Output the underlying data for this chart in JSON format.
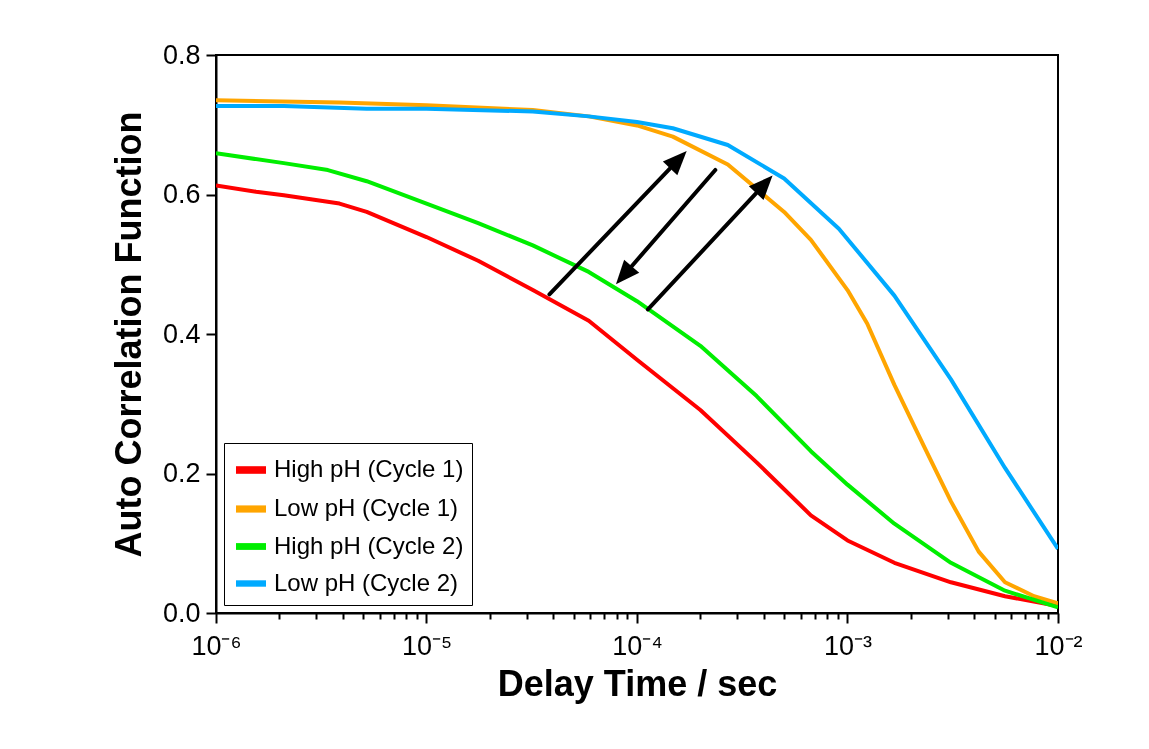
{
  "chart_data": {
    "type": "line",
    "xlabel": "Delay Time / sec",
    "ylabel": "Auto Correlation Function",
    "log": "x",
    "xlim": [
      1e-06,
      0.01
    ],
    "ylim": [
      0,
      0.8
    ],
    "xticks": [
      {
        "value": 1e-06,
        "label": "10⁻⁶"
      },
      {
        "value": 2e-06,
        "label": null
      },
      {
        "value": 3e-06,
        "label": null
      },
      {
        "value": 4e-06,
        "label": null
      },
      {
        "value": 5e-06,
        "label": null
      },
      {
        "value": 6e-06,
        "label": null
      },
      {
        "value": 7e-06,
        "label": null
      },
      {
        "value": 8e-06,
        "label": null
      },
      {
        "value": 9e-06,
        "label": null
      },
      {
        "value": 1e-05,
        "label": "10⁻⁵"
      },
      {
        "value": 2e-05,
        "label": null
      },
      {
        "value": 3e-05,
        "label": null
      },
      {
        "value": 4e-05,
        "label": null
      },
      {
        "value": 5e-05,
        "label": null
      },
      {
        "value": 6e-05,
        "label": null
      },
      {
        "value": 7e-05,
        "label": null
      },
      {
        "value": 8e-05,
        "label": null
      },
      {
        "value": 9e-05,
        "label": null
      },
      {
        "value": 0.0001,
        "label": "10⁻⁴"
      },
      {
        "value": 0.0002,
        "label": null
      },
      {
        "value": 0.0003,
        "label": null
      },
      {
        "value": 0.0004,
        "label": null
      },
      {
        "value": 0.0005,
        "label": null
      },
      {
        "value": 0.0006,
        "label": null
      },
      {
        "value": 0.0007,
        "label": null
      },
      {
        "value": 0.0008,
        "label": null
      },
      {
        "value": 0.0009,
        "label": null
      },
      {
        "value": 0.001,
        "label": "10⁻³"
      },
      {
        "value": 0.002,
        "label": null
      },
      {
        "value": 0.003,
        "label": null
      },
      {
        "value": 0.004,
        "label": null
      },
      {
        "value": 0.005,
        "label": null
      },
      {
        "value": 0.006,
        "label": null
      },
      {
        "value": 0.007,
        "label": null
      },
      {
        "value": 0.008,
        "label": null
      },
      {
        "value": 0.009,
        "label": null
      },
      {
        "value": 0.01,
        "label": "10⁻²"
      }
    ],
    "yticks": [
      {
        "value": 0,
        "label": "0.0"
      },
      0.2,
      0.4,
      0.6,
      0.8
    ],
    "grid": false,
    "legend": "bottom left",
    "line_style": "solid",
    "marker": "none",
    "series": [
      {
        "name": "High pH (Cycle 1)",
        "color": "#ff0000",
        "x": [
          1e-06,
          1.55e-06,
          2.1e-06,
          3.86e-06,
          5.2e-06,
          1e-05,
          1.76e-05,
          3.2e-05,
          5.9e-05,
          0.0001,
          0.0002,
          0.00037,
          0.00067,
          0.001,
          0.00167,
          0.0031,
          0.0056,
          0.01
        ],
        "values": [
          0.613,
          0.604,
          0.599,
          0.587,
          0.575,
          0.539,
          0.505,
          0.463,
          0.419,
          0.363,
          0.291,
          0.216,
          0.14,
          0.104,
          0.072,
          0.044,
          0.024,
          0.01
        ]
      },
      {
        "name": "Low pH (Cycle 1)",
        "color": "#ffa500",
        "x": [
          1e-06,
          3.86e-06,
          1e-05,
          3.2e-05,
          5.9e-05,
          0.0001,
          0.000148,
          0.00027,
          0.0005,
          0.00067,
          0.001,
          0.00124,
          0.00167,
          0.0023,
          0.0031,
          0.0042,
          0.0056,
          0.0077,
          0.01
        ],
        "values": [
          0.735,
          0.732,
          0.728,
          0.721,
          0.712,
          0.699,
          0.683,
          0.643,
          0.575,
          0.535,
          0.463,
          0.415,
          0.327,
          0.24,
          0.16,
          0.088,
          0.044,
          0.024,
          0.014
        ]
      },
      {
        "name": "High pH (Cycle 2)",
        "color": "#00ee00",
        "x": [
          1e-06,
          2.1e-06,
          3.4e-06,
          5.2e-06,
          1e-05,
          1.76e-05,
          3.2e-05,
          5.9e-05,
          0.0001,
          0.0002,
          0.00037,
          0.00067,
          0.001,
          0.00167,
          0.0031,
          0.0056,
          0.01
        ],
        "values": [
          0.659,
          0.645,
          0.635,
          0.619,
          0.587,
          0.559,
          0.527,
          0.489,
          0.447,
          0.383,
          0.311,
          0.232,
          0.184,
          0.128,
          0.072,
          0.032,
          0.008
        ]
      },
      {
        "name": "Low pH (Cycle 2)",
        "color": "#00aaff",
        "x": [
          1e-06,
          2.1e-06,
          5.2e-06,
          1e-05,
          3.2e-05,
          5.9e-05,
          0.0001,
          0.000148,
          0.00027,
          0.0005,
          0.00091,
          0.00167,
          0.0031,
          0.0056,
          0.01
        ],
        "values": [
          0.727,
          0.727,
          0.723,
          0.723,
          0.719,
          0.712,
          0.704,
          0.695,
          0.671,
          0.623,
          0.551,
          0.455,
          0.335,
          0.208,
          0.092
        ]
      }
    ]
  }
}
